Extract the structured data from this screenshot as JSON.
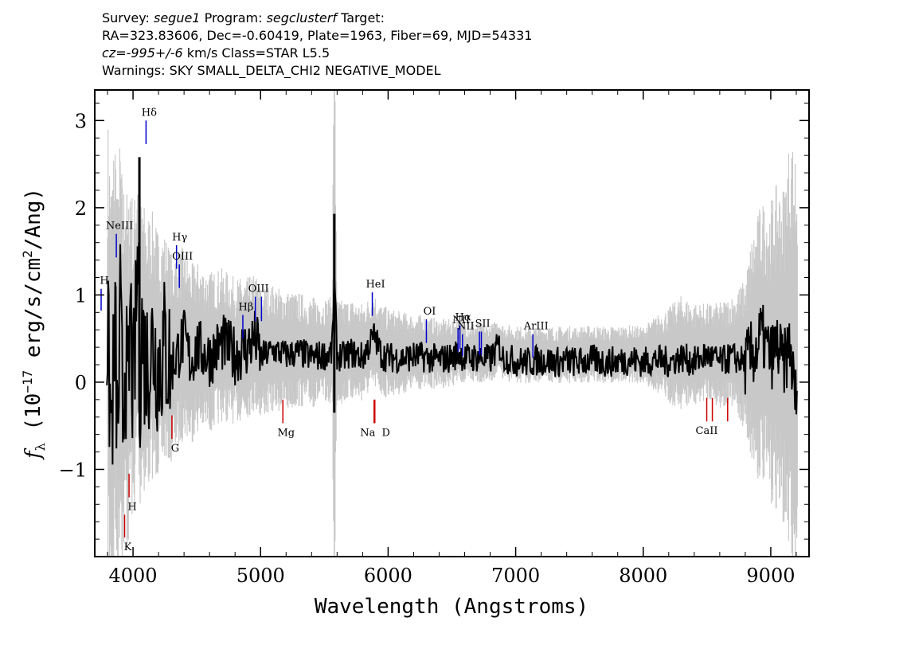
{
  "header": {
    "survey_label": "Survey:",
    "survey": "segue1",
    "program_label": "Program:",
    "program": "segclusterf",
    "target_label": "Target:",
    "line2": "RA=323.83606, Dec=-0.60419, Plate=1963, Fiber=69, MJD=54331",
    "cz": "cz=-995+/-6",
    "cz_rest": " km/s Class=STAR L5.5",
    "warnings": "Warnings: SKY SMALL_DELTA_CHI2 NEGATIVE_MODEL"
  },
  "chart_data": {
    "type": "line",
    "title": "",
    "xlabel": "Wavelength (Angstroms)",
    "ylabel": "f_λ (10^-17 erg/s/cm^2/Ang)",
    "xlim": [
      3700,
      9300
    ],
    "ylim": [
      -2.0,
      3.35
    ],
    "grid": false,
    "x_ticks": [
      4000,
      5000,
      6000,
      7000,
      8000,
      9000
    ],
    "x_tick_labels": [
      "4000",
      "5000",
      "6000",
      "7000",
      "8000",
      "9000"
    ],
    "y_ticks": [
      -1,
      0,
      1,
      2,
      3
    ],
    "y_tick_labels": [
      "−1",
      "0",
      "1",
      "2",
      "3"
    ],
    "series": [
      {
        "role": "flux",
        "color": "#000000",
        "x": [
          3800,
          3830,
          3860,
          3880,
          3900,
          3920,
          3940,
          3960,
          3980,
          4000,
          4020,
          4040,
          4050,
          4070,
          4100,
          4150,
          4200,
          4250,
          4300,
          4350,
          4400,
          4450,
          4500,
          4600,
          4700,
          4800,
          4900,
          4960,
          5000,
          5100,
          5200,
          5300,
          5400,
          5500,
          5560,
          5578,
          5600,
          5650,
          5700,
          5800,
          5890,
          5950,
          6000,
          6100,
          6200,
          6300,
          6400,
          6500,
          6560,
          6600,
          6700,
          6800,
          6870,
          6900,
          7000,
          7100,
          7200,
          7300,
          7400,
          7500,
          7600,
          7700,
          7800,
          7900,
          8000,
          8100,
          8200,
          8300,
          8400,
          8500,
          8600,
          8700,
          8800,
          8900,
          8920,
          9000,
          9050,
          9100,
          9150,
          9180,
          9200
        ],
        "y": [
          0.7,
          -1.3,
          0.9,
          -1.5,
          1.2,
          -0.9,
          0.6,
          -1.0,
          1.3,
          -0.6,
          0.8,
          2.58,
          -0.3,
          0.9,
          0.1,
          0.6,
          0.2,
          0.5,
          0.1,
          0.4,
          0.7,
          0.2,
          0.5,
          0.3,
          0.6,
          0.35,
          0.5,
          0.7,
          0.3,
          0.45,
          0.35,
          0.4,
          0.3,
          0.35,
          0.4,
          1.93,
          0.35,
          0.3,
          0.4,
          0.3,
          0.75,
          0.35,
          0.3,
          0.28,
          0.32,
          0.3,
          0.25,
          0.3,
          0.4,
          0.28,
          0.3,
          0.25,
          0.55,
          0.3,
          0.22,
          0.2,
          0.25,
          0.2,
          0.22,
          0.2,
          0.25,
          0.2,
          0.22,
          0.25,
          0.2,
          0.25,
          0.2,
          0.3,
          0.2,
          0.35,
          0.2,
          0.3,
          0.2,
          0.5,
          0.8,
          0.3,
          0.55,
          0.1,
          0.6,
          -0.3,
          -0.6
        ]
      },
      {
        "role": "error",
        "color": "#c8c8c8",
        "x": [
          3800,
          3850,
          3900,
          3950,
          4000,
          4100,
          4200,
          4300,
          4400,
          4500,
          4700,
          5000,
          5300,
          5560,
          5578,
          5600,
          5900,
          6200,
          6500,
          6800,
          7100,
          7500,
          8000,
          8300,
          8500,
          8700,
          8800,
          8850,
          8900,
          9000,
          9100,
          9150,
          9200
        ],
        "y": [
          2.4,
          2.3,
          2.1,
          1.9,
          1.7,
          1.5,
          1.3,
          1.1,
          1.0,
          0.9,
          0.8,
          0.7,
          0.6,
          0.55,
          3.3,
          0.55,
          0.5,
          0.4,
          0.35,
          0.3,
          0.3,
          0.3,
          0.3,
          0.6,
          0.5,
          0.6,
          0.8,
          1.2,
          1.4,
          1.6,
          1.8,
          2.2,
          2.5
        ]
      }
    ],
    "emission_lines": [
      {
        "label": "H",
        "x": 3750,
        "y_top": 1.07,
        "y_bot": 0.82
      },
      {
        "label": "NeIII",
        "x": 3869,
        "y_top": 1.7,
        "y_bot": 1.43
      },
      {
        "label": "Hδ",
        "x": 4102,
        "y_top": 3.0,
        "y_bot": 2.73
      },
      {
        "label": "Hγ",
        "x": 4341,
        "y_top": 1.57,
        "y_bot": 1.3
      },
      {
        "label": "OIII",
        "x": 4363,
        "y_top": 1.35,
        "y_bot": 1.08
      },
      {
        "label": "Hβ",
        "x": 4861,
        "y_top": 0.77,
        "y_bot": 0.5
      },
      {
        "label": "OIII",
        "x": 4959,
        "y_top": 0.98,
        "y_bot": 0.7
      },
      {
        "label": "OIII",
        "x": 5007,
        "y_top": 0.98,
        "y_bot": 0.7
      },
      {
        "label": "HeI",
        "x": 5876,
        "y_top": 1.03,
        "y_bot": 0.76
      },
      {
        "label": "OI",
        "x": 6300,
        "y_top": 0.72,
        "y_bot": 0.45
      },
      {
        "label": "NII",
        "x": 6548,
        "y_top": 0.62,
        "y_bot": 0.35
      },
      {
        "label": "Hα",
        "x": 6563,
        "y_top": 0.65,
        "y_bot": 0.38
      },
      {
        "label": "NII",
        "x": 6583,
        "y_top": 0.55,
        "y_bot": 0.3
      },
      {
        "label": "SII",
        "x": 6716,
        "y_top": 0.58,
        "y_bot": 0.31
      },
      {
        "label": "SII",
        "x": 6731,
        "y_top": 0.58,
        "y_bot": 0.31
      },
      {
        "label": "ArIII",
        "x": 7135,
        "y_top": 0.55,
        "y_bot": 0.28
      }
    ],
    "absorption_lines": [
      {
        "label": "K",
        "x": 3934,
        "y_top": -1.52,
        "y_bot": -1.78
      },
      {
        "label": "H",
        "x": 3969,
        "y_top": -1.05,
        "y_bot": -1.32
      },
      {
        "label": "G",
        "x": 4305,
        "y_top": -0.38,
        "y_bot": -0.65
      },
      {
        "label": "Mg",
        "x": 5175,
        "y_top": -0.2,
        "y_bot": -0.47
      },
      {
        "label": "Na",
        "x": 5890,
        "y_top": -0.2,
        "y_bot": -0.47
      },
      {
        "label": "D",
        "x": 5896,
        "y_top": -0.2,
        "y_bot": -0.47
      },
      {
        "label": "CaII",
        "x": 8498,
        "y_top": -0.18,
        "y_bot": -0.45
      },
      {
        "label": "CaII",
        "x": 8542,
        "y_top": -0.18,
        "y_bot": -0.45
      },
      {
        "label": "CaII",
        "x": 8662,
        "y_top": -0.18,
        "y_bot": -0.45
      }
    ],
    "sky_line_x": 5578,
    "colors": {
      "flux": "#000000",
      "error": "#c8c8c8",
      "emission": "#0000cc",
      "absorption": "#cc0000",
      "sky": "#c8c8c8"
    }
  }
}
